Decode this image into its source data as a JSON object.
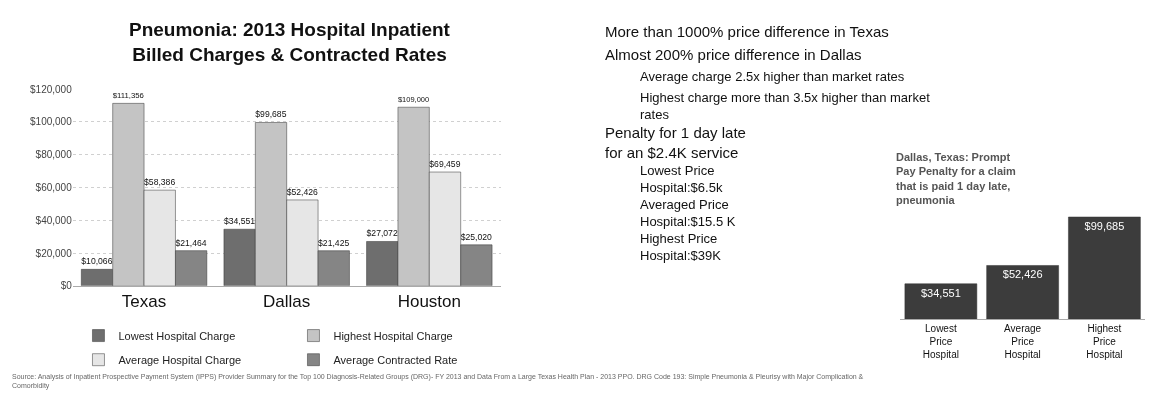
{
  "chart_data": [
    {
      "type": "bar",
      "title": "Pneumonia: 2013 Hospital Inpatient Billed Charges & Contracted Rates",
      "categories": [
        "Texas",
        "Dallas",
        "Houston"
      ],
      "series": [
        {
          "name": "Lowest Hospital Charge",
          "color": "#6e6e6e",
          "values": [
            10066,
            34551,
            27072
          ],
          "value_labels": [
            "$10,066",
            "$34,551",
            "$27,072"
          ]
        },
        {
          "name": "Highest Hospital Charge",
          "color": "#c4c4c4",
          "values": [
            111356,
            99685,
            109000
          ],
          "value_labels": [
            "$111,356",
            "$99,685",
            "$109,000"
          ]
        },
        {
          "name": "Average Hospital Charge",
          "color": "#e6e6e6",
          "values": [
            58386,
            52426,
            69459
          ],
          "value_labels": [
            "$58,386",
            "$52,426",
            "$69,459"
          ]
        },
        {
          "name": "Average Contracted Rate",
          "color": "#858585",
          "values": [
            21464,
            21425,
            25020
          ],
          "value_labels": [
            "$21,464",
            "$21,425",
            "$25,020"
          ]
        }
      ],
      "ylim": [
        0,
        120000
      ],
      "yticks": [
        {
          "value": 0,
          "label": "$0"
        },
        {
          "value": 20000,
          "label": "$20,000"
        },
        {
          "value": 40000,
          "label": "$40,000"
        },
        {
          "value": 60000,
          "label": "$60,000"
        },
        {
          "value": 80000,
          "label": "$80,000"
        },
        {
          "value": 100000,
          "label": "$100,000"
        },
        {
          "value": 120000,
          "label": "$120,000"
        }
      ],
      "grid": "y",
      "legend": "bottom",
      "annotations": [
        "Source: Analysis of Inpatient Prospective Payment System (IPPS) Provider Summary for the Top 100 Diagnosis-Related Groups (DRG)- FY 2013 and Data From a Large Texas Health Plan - 2013 PPO. DRG Code 193: Simple Pneumonia & Pleurisy with Major Complication & Comorbidity"
      ]
    },
    {
      "type": "other",
      "annotations": [
        "More than 1000% price difference in Texas",
        "Almost 200% price difference in Dallas",
        "Average charge 2.5x higher than market rates",
        "Highest charge more than 3.5x higher than market rates",
        "Penalty for 1 day late for an $2.4K service",
        "Lowest Price Hospital:$6.5k",
        "Averaged Price Hospital:$15.5 K",
        "Highest Price Hospital:$39K"
      ]
    },
    {
      "type": "bar",
      "title": "Dallas, Texas: Prompt Pay Penalty for a claim that is paid 1 day late, pneumonia",
      "categories": [
        "Lowest Price Hospital",
        "Average Price Hospital",
        "Highest Price Hospital"
      ],
      "values": [
        34551,
        52426,
        99685
      ],
      "value_labels": [
        "$34,551",
        "$52,426",
        "$99,685"
      ],
      "color": "#3c3c3c"
    }
  ]
}
